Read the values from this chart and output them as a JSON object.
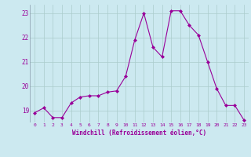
{
  "x": [
    0,
    1,
    2,
    3,
    4,
    5,
    6,
    7,
    8,
    9,
    10,
    11,
    12,
    13,
    14,
    15,
    16,
    17,
    18,
    19,
    20,
    21,
    22,
    23
  ],
  "y": [
    18.9,
    19.1,
    18.7,
    18.7,
    19.3,
    19.55,
    19.6,
    19.6,
    19.75,
    19.8,
    20.4,
    21.9,
    23.0,
    21.6,
    21.2,
    23.1,
    23.1,
    22.5,
    22.1,
    21.0,
    19.9,
    19.2,
    19.2,
    18.6
  ],
  "line_color": "#990099",
  "marker": "D",
  "marker_size": 2,
  "background_color": "#cce9f0",
  "grid_color": "#aacccc",
  "xlabel": "Windchill (Refroidissement éolien,°C)",
  "xlabel_color": "#990099",
  "tick_color": "#990099",
  "ylim": [
    18.5,
    23.35
  ],
  "xlim": [
    -0.5,
    23.5
  ],
  "yticks": [
    19,
    20,
    21,
    22,
    23
  ],
  "xticks": [
    0,
    1,
    2,
    3,
    4,
    5,
    6,
    7,
    8,
    9,
    10,
    11,
    12,
    13,
    14,
    15,
    16,
    17,
    18,
    19,
    20,
    21,
    22,
    23
  ]
}
